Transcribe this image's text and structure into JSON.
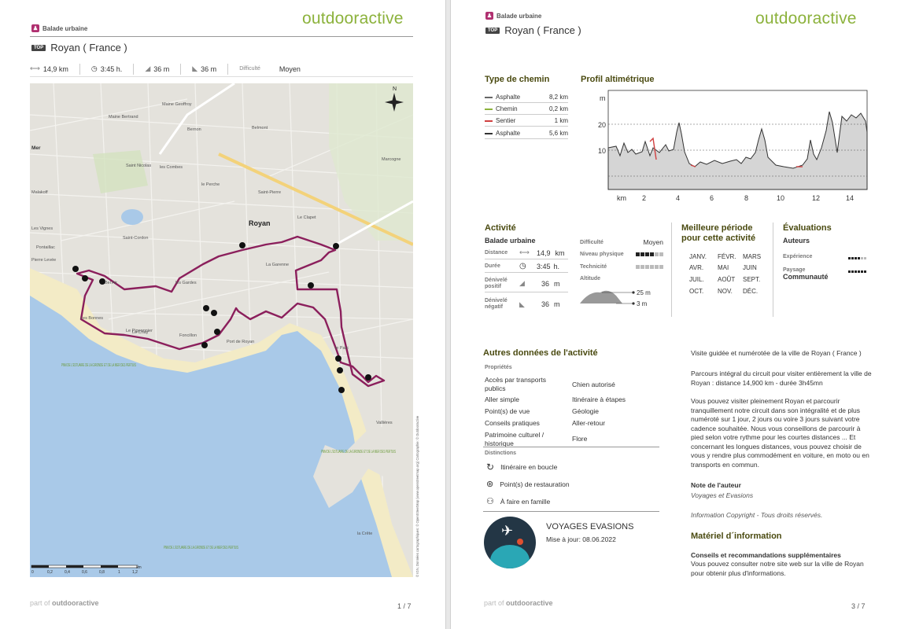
{
  "brand": "outdooractive",
  "page1": {
    "category": "Balade urbaine",
    "badge": "TOP",
    "title": "Royan ( France )",
    "stats": {
      "distance": "14,9 km",
      "duration": "3:45 h.",
      "ascent": "36 m",
      "descent": "36 m",
      "difficulty_label": "Difficulté",
      "difficulty_value": "Moyen"
    },
    "map": {
      "labels": [
        "Maine Geoffroy",
        "Mer",
        "Royan",
        "Bel Air",
        "les Gardes",
        "Foncillon",
        "le Parc",
        "Vallières",
        "la Crête",
        "le Perche",
        "Malakoff",
        "Pontaillac",
        "Les Bonnes",
        "Belmont",
        "Maine Bertrand",
        "Le Clapet",
        "Saint-Pierre",
        "Marcogne",
        "les Combes",
        "Saint Nicolas",
        "Saint-Cordon",
        "Port de Royan",
        "Le Chay",
        "Bernon",
        "La Garenne",
        "Le Pigeonnier",
        "Pierre Levée",
        "Les Vignes"
      ],
      "pnm_labels": [
        "PNM DE L'ESTUAIRE DE LA GIRONDE ET DE LA MER DES PERTUIS",
        "PNM DE L'ESTUAIRE DE LA GIRONDE ET DE LA MER DES PERTUIS",
        "PNM DE L'ESTUAIRE DE LA GIRONDE ET DE LA MER DES PERTUIS"
      ],
      "scale_ticks": [
        "0",
        "0,2",
        "0,4",
        "0,6",
        "0,8",
        "1",
        "1,2"
      ],
      "scale_unit": "km",
      "north": "N",
      "credit": "© IGN, Données cartographiques: © OpenStreetMap (www.openstreetmap.org) Cartographie: © Outdooractive"
    },
    "footer_part": "part of",
    "footer_brand": "outdooractive",
    "page_number": "1 / 7"
  },
  "page2": {
    "category": "Balade urbaine",
    "badge": "TOP",
    "title": "Royan ( France )",
    "type_chemin": {
      "heading": "Type de chemin",
      "rows": [
        {
          "name": "Asphalte",
          "value": "8,2 km",
          "color": "#666666"
        },
        {
          "name": "Chemin",
          "value": "0,2 km",
          "color": "#8cb23c"
        },
        {
          "name": "Sentier",
          "value": "1 km",
          "color": "#d04040"
        },
        {
          "name": "Asphalte",
          "value": "5,6 km",
          "color": "#333333"
        }
      ]
    },
    "profile": {
      "heading": "Profil altimétrique",
      "y_unit": "m",
      "y_ticks": [
        "20",
        "10"
      ],
      "x_unit": "km",
      "x_ticks": [
        "2",
        "4",
        "6",
        "8",
        "10",
        "12",
        "14"
      ]
    },
    "activite": {
      "heading": "Activité",
      "type": "Balade urbaine",
      "distance_label": "Distance",
      "distance_value": "14,9",
      "distance_unit": "km",
      "duree_label": "Durée",
      "duree_value": "3:45",
      "duree_unit": "h.",
      "denivele_pos_label1": "Dénivelé",
      "denivele_pos_label2": "positif",
      "denivele_pos_value": "36",
      "denivele_pos_unit": "m",
      "denivele_neg_label1": "Dénivelé",
      "denivele_neg_label2": "négatif",
      "denivele_neg_value": "36",
      "denivele_neg_unit": "m",
      "difficulte_label": "Difficulté",
      "difficulte_value": "Moyen",
      "niveau_label": "Niveau physique",
      "niveau_level": 4,
      "technicite_label": "Technicité",
      "technicite_level": 0,
      "altitude_label": "Altitude",
      "alt_max": "25 m",
      "alt_min": "3 m"
    },
    "periode": {
      "heading1": "Meilleure période",
      "heading2": "pour cette activité",
      "months": [
        "JANV.",
        "FÉVR.",
        "MARS",
        "AVR.",
        "MAI",
        "JUIN",
        "JUIL.",
        "AOÛT",
        "SEPT.",
        "OCT.",
        "NOV.",
        "DÉC."
      ]
    },
    "evaluations": {
      "heading": "Évaluations",
      "auteurs": "Auteurs",
      "experience_label": "Expérience",
      "experience_level": 4,
      "paysage_label": "Paysage",
      "paysage_level": 6,
      "communaute": "Communauté"
    },
    "autres": {
      "heading": "Autres données de l'activité",
      "proprietes_label": "Propriétés",
      "left": [
        "Accès par transports publics",
        "Aller simple",
        "Point(s) de vue",
        "Conseils pratiques",
        "Patrimoine culturel / historique"
      ],
      "right": [
        "Chien autorisé",
        "Itinéraire à étapes",
        "Géologie",
        "Aller-retour",
        "Flore"
      ],
      "distinctions_label": "Distinctions",
      "distinctions": [
        "Itinéraire en boucle",
        "Point(s) de restauration",
        "À faire en famille"
      ]
    },
    "author": {
      "name": "VOYAGES EVASIONS",
      "updated": "Mise à jour: 08.06.2022"
    },
    "description": {
      "title": "Visite guidée et numérotée de la ville de Royan ( France )",
      "p1": "Parcours intégral du circuit pour visiter entièrement la ville de Royan : distance 14,900 km - durée 3h45mn",
      "p2": "Vous pouvez visiter pleinement Royan et parcourir tranquillement notre circuit dans son intégralité et de plus numéroté sur 1 jour, 2 jours ou voire 3 jours suivant votre cadence souhaitée. Nous vous conseillons de parcourir à pied selon votre rythme pour les courtes distances ... Et concernant les longues distances, vous pouvez choisir de vous y rendre plus commodément en voiture, en moto ou en transports en commun.",
      "note_title": "Note de l'auteur",
      "note_author": "Voyages et Evasions",
      "copyright": "Information Copyright - Tous droits réservés.",
      "materiel_heading": "Matériel d´information",
      "conseils_title": "Conseils et recommandations supplémentaires",
      "conseils_text": "Vous pouvez consulter notre site web sur la ville de Royan pour obtenir plus d'informations."
    },
    "footer_part": "part of",
    "footer_brand": "outdooractive",
    "page_number": "3 / 7"
  },
  "colors": {
    "brand_green": "#8cb23c",
    "route": "#8b1f5c",
    "heading": "#4a4a10"
  }
}
